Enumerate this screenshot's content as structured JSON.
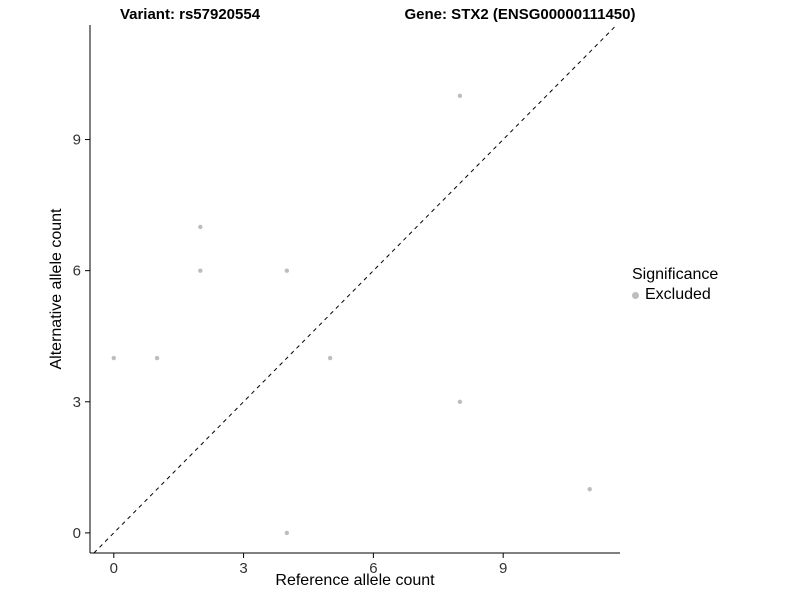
{
  "chart_data": {
    "type": "scatter",
    "title_left": "Variant: rs57920554",
    "title_right": "Gene: STX2 (ENSG00000111450)",
    "xlabel": "Reference allele count",
    "ylabel": "Alternative allele count",
    "xticks": [
      0,
      3,
      6,
      9
    ],
    "yticks": [
      0,
      3,
      6,
      9
    ],
    "xlim": [
      -0.55,
      11.7
    ],
    "ylim": [
      -0.46,
      11.62
    ],
    "grid": false,
    "points": [
      {
        "x": 0,
        "y": 4,
        "significance": "Excluded"
      },
      {
        "x": 1,
        "y": 4,
        "significance": "Excluded"
      },
      {
        "x": 2,
        "y": 7,
        "significance": "Excluded"
      },
      {
        "x": 2,
        "y": 6,
        "significance": "Excluded"
      },
      {
        "x": 4,
        "y": 6,
        "significance": "Excluded"
      },
      {
        "x": 4,
        "y": 0,
        "significance": "Excluded"
      },
      {
        "x": 5,
        "y": 4,
        "significance": "Excluded"
      },
      {
        "x": 8,
        "y": 10,
        "significance": "Excluded"
      },
      {
        "x": 8,
        "y": 3,
        "significance": "Excluded"
      },
      {
        "x": 11,
        "y": 1,
        "significance": "Excluded"
      }
    ],
    "identity_line": {
      "slope": 1,
      "intercept": 0,
      "style": "dashed",
      "color": "#000000"
    },
    "point_color": "#bdbdbd",
    "point_radius": 2.2,
    "axis_color": "#000000",
    "tick_label_color": "#333333",
    "legend": {
      "title": "Significance",
      "position": "right",
      "items": [
        {
          "label": "Excluded",
          "color": "#bdbdbd"
        }
      ]
    }
  }
}
